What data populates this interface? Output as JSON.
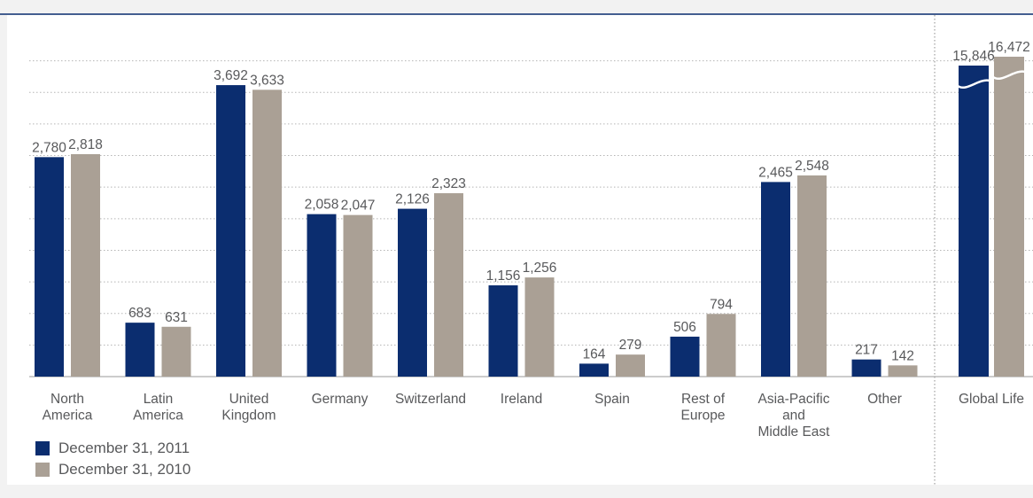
{
  "chart_data": {
    "type": "bar",
    "categories": [
      [
        "North",
        "America"
      ],
      [
        "Latin",
        "America"
      ],
      [
        "United",
        "Kingdom"
      ],
      [
        "Germany"
      ],
      [
        "Switzerland"
      ],
      [
        "Ireland"
      ],
      [
        "Spain"
      ],
      [
        "Rest of",
        "Europe"
      ],
      [
        "Asia-Pacific",
        "and",
        "Middle East"
      ],
      [
        "Other"
      ]
    ],
    "series": [
      {
        "name": "December 31, 2011",
        "color": "#0b2d6f",
        "values": [
          2780,
          683,
          3692,
          2058,
          2126,
          1156,
          164,
          506,
          2465,
          217
        ],
        "labels": [
          "2,780",
          "683",
          "3,692",
          "2,058",
          "2,126",
          "1,156",
          "164",
          "506",
          "2,465",
          "217"
        ]
      },
      {
        "name": "December 31, 2010",
        "color": "#aaa095",
        "values": [
          2818,
          631,
          3633,
          2047,
          2323,
          1256,
          279,
          794,
          2548,
          142
        ],
        "labels": [
          "2,818",
          "631",
          "3,633",
          "2,047",
          "2,323",
          "1,256",
          "279",
          "794",
          "2,548",
          "142"
        ]
      }
    ],
    "total": {
      "category": "Global Life",
      "values": [
        15846,
        16472
      ],
      "labels": [
        "15,846",
        "16,472"
      ],
      "axis_break": true
    },
    "ylim": [
      0,
      4400
    ],
    "gridlines": true,
    "legend_position": "bottom-left"
  }
}
